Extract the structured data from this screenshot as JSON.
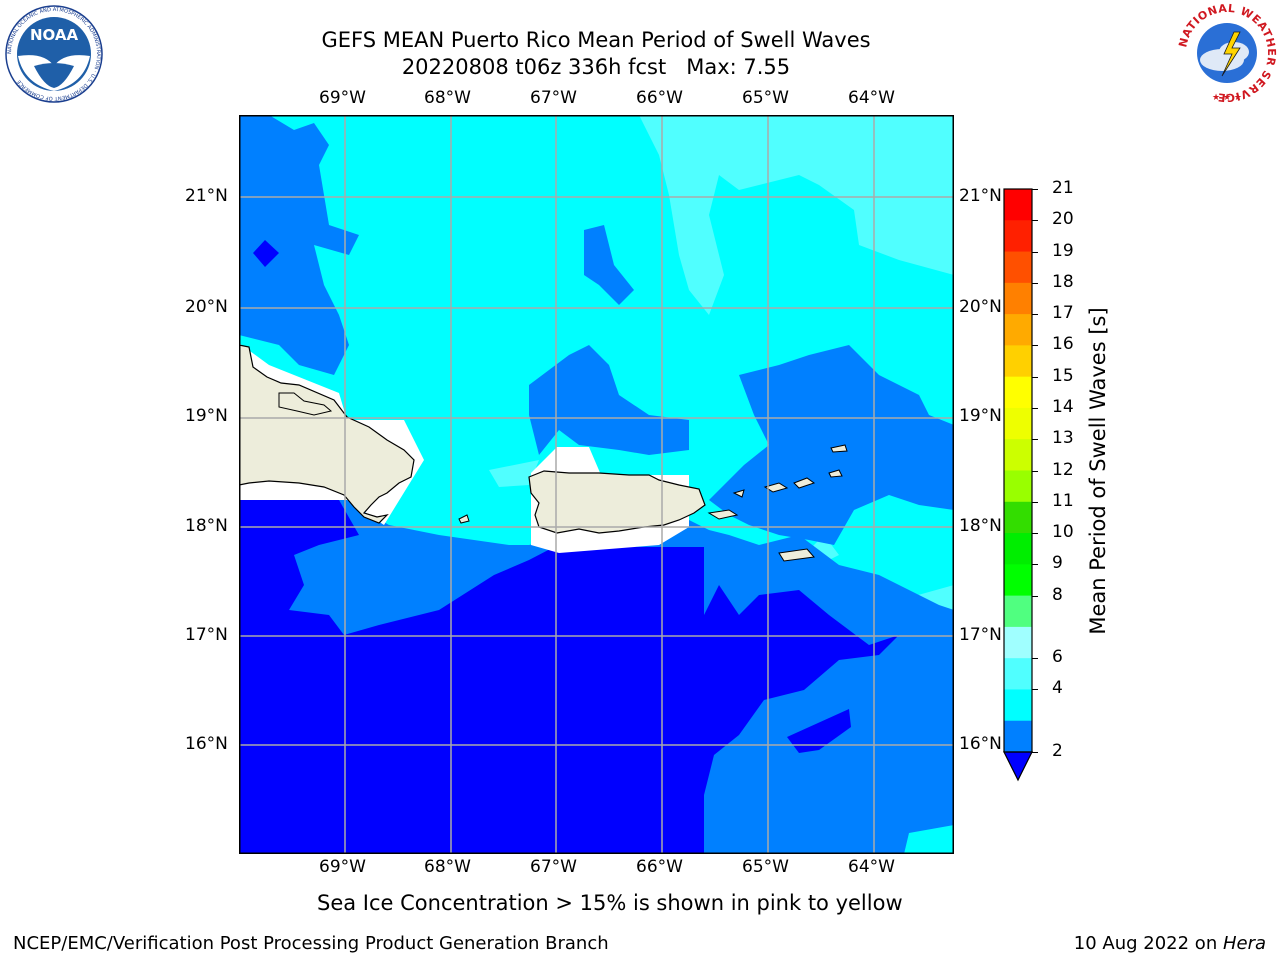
{
  "header": {
    "title_line1": "GEFS MEAN Puerto Rico Mean Period of Swell Waves",
    "title_line2": "20220808 t06z 336h fcst   Max: 7.55"
  },
  "logos": {
    "noaa_text": "NOAA",
    "noaa_ring_text": "NATIONAL OCEANIC AND ATMOSPHERIC ADMINISTRATION · U.S. DEPARTMENT OF COMMERCE",
    "nws_ring_text": "NATIONAL WEATHER SERVICE"
  },
  "map": {
    "lon_labels": [
      "69°W",
      "68°W",
      "67°W",
      "66°W",
      "65°W",
      "64°W"
    ],
    "lat_labels": [
      "21°N",
      "20°N",
      "19°N",
      "18°N",
      "17°N",
      "16°N"
    ],
    "colors": {
      "c2_4": "#0080ff",
      "c_lt2": "#0000ff",
      "c4_6": "#00ffff",
      "c6_8": "#50ffff",
      "land": "#ededdb",
      "grid": "#aaaaaa"
    }
  },
  "colorbar": {
    "label": "Mean Period of Swell Waves [s]",
    "ticks": [
      "21",
      "20",
      "19",
      "18",
      "17",
      "16",
      "15",
      "14",
      "13",
      "12",
      "11",
      "10",
      "9",
      "8",
      "6",
      "4",
      "2"
    ],
    "bands_top_to_bottom": [
      "#ff0000",
      "#ff2000",
      "#ff5000",
      "#ff8000",
      "#ffaa00",
      "#ffd000",
      "#ffff00",
      "#eeff00",
      "#ccff00",
      "#99ff00",
      "#33dd00",
      "#00ee00",
      "#00ff00",
      "#50ff80",
      "#a0ffff",
      "#50ffff",
      "#00ffff",
      "#0080ff"
    ],
    "under_color": "#0000ff"
  },
  "caption": "Sea Ice Concentration > 15% is shown in pink to yellow",
  "footer": {
    "left": "NCEP/EMC/Verification Post Processing Product Generation Branch",
    "right_date": "10 Aug 2022 on ",
    "right_host": "Hera"
  }
}
